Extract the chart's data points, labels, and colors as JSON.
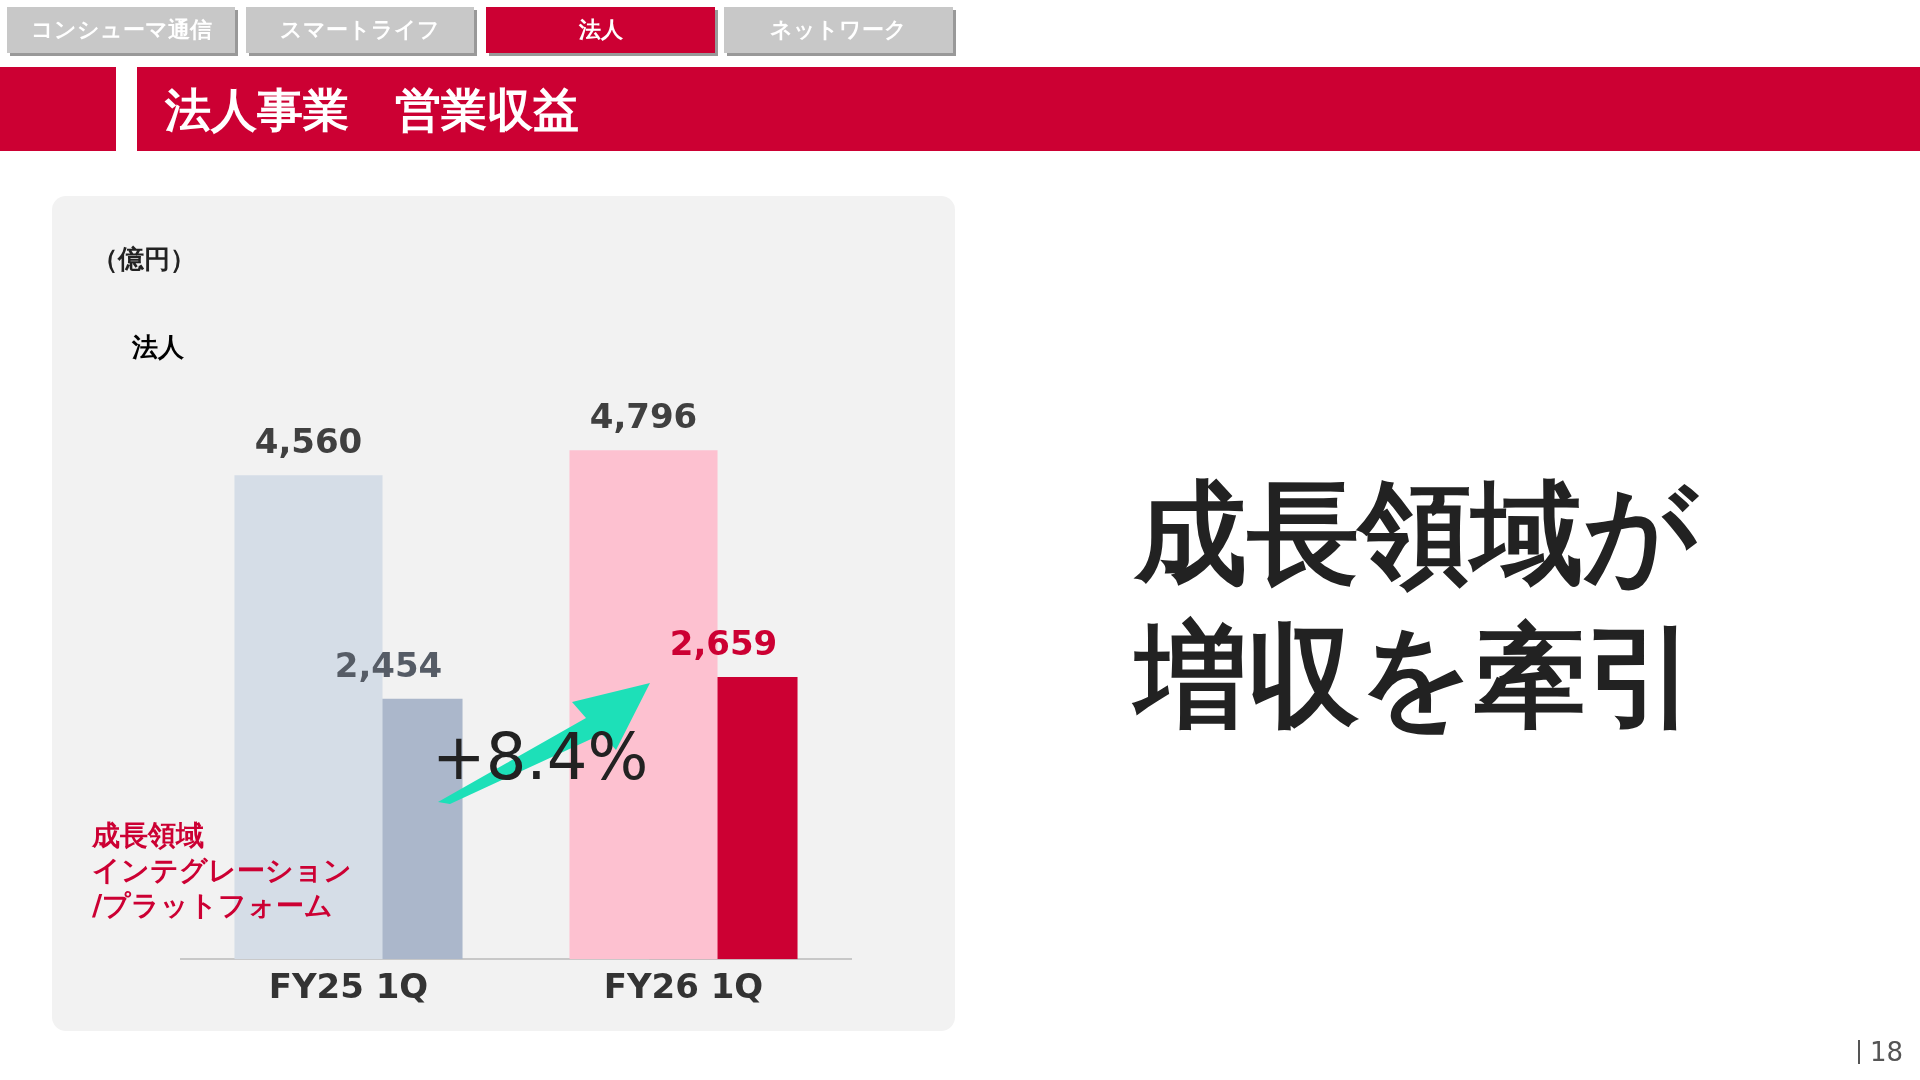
{
  "chart_data": {
    "type": "bar",
    "title": "法人事業　営業収益",
    "categories": [
      "FY25 1Q",
      "FY26 1Q"
    ],
    "series": [
      {
        "colors": [
          "#d5dde7",
          "#fdc1d0"
        ],
        "values": [
          4560,
          4796
        ],
        "value_labels": [
          "4,560",
          "4,796"
        ]
      },
      {
        "name": "成長領域インテグレーション/プラットフォーム",
        "colors": [
          "#abb7cb",
          "#cc0033"
        ],
        "values": [
          2454,
          2659
        ],
        "value_labels": [
          "2,454",
          "2,659"
        ]
      }
    ],
    "grid": false,
    "legend": false,
    "annotations": [
      "コンシューマ通信",
      "スマートライフ",
      "法人",
      "ネットワーク",
      "成長領域が増収を牽引",
      "+8.4%",
      "18",
      "（億円）",
      "法人"
    ]
  }
}
